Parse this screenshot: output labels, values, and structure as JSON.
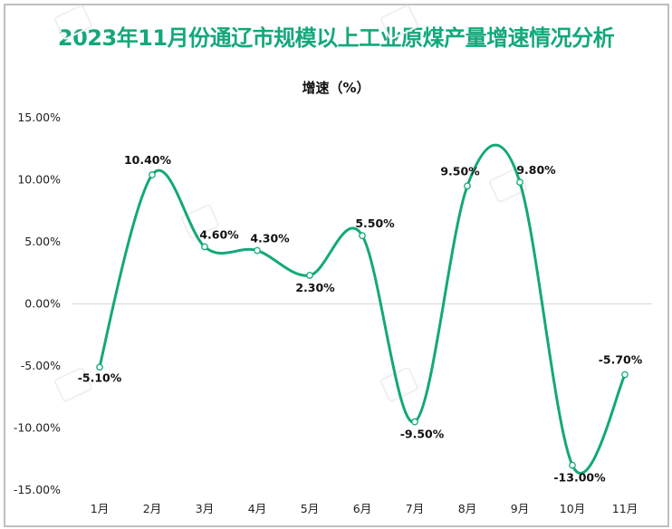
{
  "title": "2023年11月份通辽市规模以上工业原煤产量增速情况分析",
  "subtitle": "增速（%）",
  "colors": {
    "title": "#13a87a",
    "line": "#13a87a",
    "marker_fill": "#ffffff",
    "gridline": "#d9d9d9",
    "frame": "#bfbfbf"
  },
  "chart_data": {
    "type": "line",
    "title": "2023年11月份通辽市规模以上工业原煤产量增速情况分析",
    "subtitle": "增速（%）",
    "xlabel": "",
    "ylabel": "增速（%）",
    "categories": [
      "1月",
      "2月",
      "3月",
      "4月",
      "5月",
      "6月",
      "7月",
      "8月",
      "9月",
      "10月",
      "11月"
    ],
    "series": [
      {
        "name": "增速",
        "values": [
          -5.1,
          10.4,
          4.6,
          4.3,
          2.3,
          5.5,
          -9.5,
          9.5,
          9.8,
          -13.0,
          -5.7
        ],
        "labels": [
          "-5.10%",
          "10.40%",
          "4.60%",
          "4.30%",
          "2.30%",
          "5.50%",
          "-9.50%",
          "9.50%",
          "9.80%",
          "-13.00%",
          "-5.70%"
        ],
        "smooth": true,
        "markers": "hollow-circle"
      }
    ],
    "ylim": [
      -15,
      15
    ],
    "yticks": [
      15,
      10,
      5,
      0,
      -5,
      -10,
      -15
    ],
    "ytick_labels": [
      "15.00%",
      "10.00%",
      "5.00%",
      "0.00%",
      "-5.00%",
      "-10.00%",
      "-15.00%"
    ],
    "grid": false,
    "zero_line": true,
    "legend": null
  }
}
